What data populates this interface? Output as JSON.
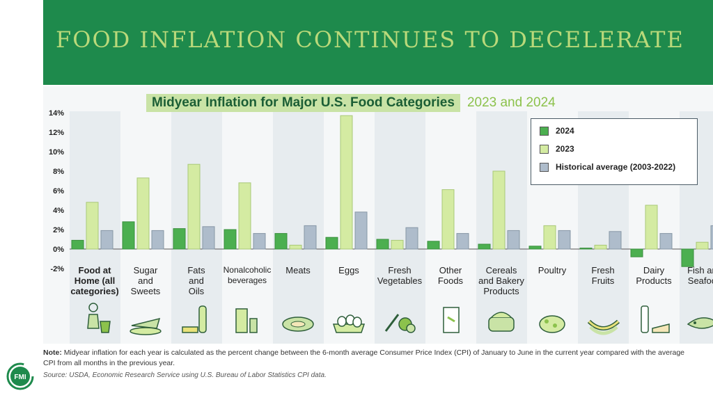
{
  "banner": {
    "title": "FOOD INFLATION CONTINUES TO DECELERATE"
  },
  "subtitle": {
    "main": "Midyear Inflation for Major U.S. Food Categories",
    "years": "2023 and 2024"
  },
  "legend": {
    "items": [
      "2024",
      "2023",
      "Historical average (2003-2022)"
    ]
  },
  "colors": {
    "s2024": "#4caf50",
    "s2023": "#d4eba2",
    "historical": "#aebccb",
    "banner": "#1e8a4c",
    "brand": "#1e8a4c"
  },
  "chart_data": {
    "type": "bar",
    "title": "Midyear Inflation for Major U.S. Food Categories 2023 and 2024",
    "ylim": [
      -2,
      14
    ],
    "yticks": [
      "-2%",
      "0%",
      "2%",
      "4%",
      "6%",
      "8%",
      "10%",
      "12%",
      "14%"
    ],
    "ytick_values": [
      -2,
      0,
      2,
      4,
      6,
      8,
      10,
      12,
      14
    ],
    "categories": [
      "Food at Home (all categories)",
      "Sugar and Sweets",
      "Fats and Oils",
      "Nonalcoholic beverages",
      "Meats",
      "Eggs",
      "Fresh Vegetables",
      "Other Foods",
      "Cereals and Bakery Products",
      "Poultry",
      "Fresh Fruits",
      "Dairy Products",
      "Fish and Seafood"
    ],
    "series": [
      {
        "name": "2024",
        "values": [
          0.9,
          2.8,
          2.1,
          2.0,
          1.6,
          1.2,
          1.0,
          0.8,
          0.5,
          0.3,
          0.1,
          -0.8,
          -1.8
        ]
      },
      {
        "name": "2023",
        "values": [
          4.8,
          7.3,
          8.7,
          6.8,
          0.4,
          13.7,
          0.9,
          6.1,
          8.0,
          2.4,
          0.4,
          4.5,
          0.7
        ]
      },
      {
        "name": "Historical average (2003-2022)",
        "values": [
          1.9,
          1.9,
          2.3,
          1.6,
          2.4,
          3.8,
          2.2,
          1.6,
          1.9,
          1.9,
          1.8,
          1.6,
          2.4
        ]
      }
    ]
  },
  "category_icons": [
    "grocery-shopper",
    "pie-slice",
    "oil-bottle-butter",
    "milk-can-drinks",
    "steak",
    "egg-carton",
    "vegetables",
    "cereal-box",
    "bread-loaf",
    "roast-chicken",
    "bananas",
    "milk-bottle-cheese",
    "fish"
  ],
  "footer": {
    "note_label": "Note:",
    "note_text": " Midyear inflation for each year is calculated as the percent change between the 6-month average Consumer Price Index (CPI) of January to June in the current year compared with the average CPI from all months in the previous year.",
    "source": "Source: USDA, Economic Research Service using U.S. Bureau of Labor Statistics CPI data."
  },
  "logo": {
    "text": "FMI"
  }
}
